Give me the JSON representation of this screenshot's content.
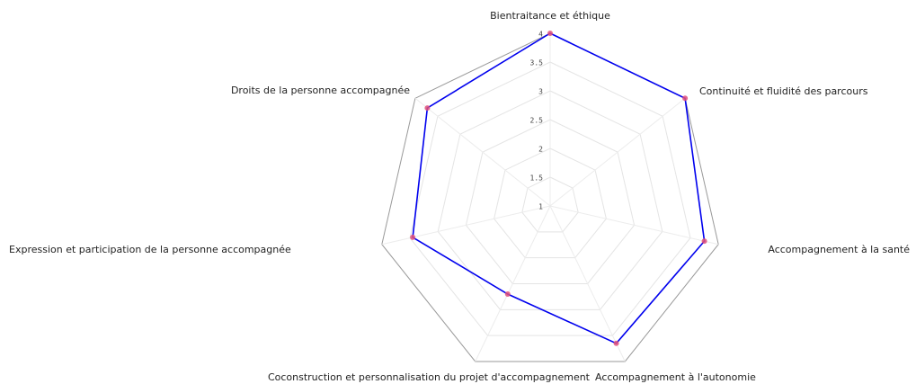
{
  "chart_data": {
    "type": "radar",
    "categories": [
      "Bientraitance et éthique",
      "Continuité et fluidité des parcours",
      "Accompagnement à la santé",
      "Accompagnement à l'autonomie",
      "Coconstruction et personnalisation du projet d'accompagnement",
      "Expression et participation de la personne accompagnée",
      "Droits de la personne accompagnée"
    ],
    "series": [
      {
        "color": "#0000ee",
        "marker_color": "#e0507a",
        "values": [
          4,
          4,
          3.75,
          3.65,
          2.7,
          3.45,
          3.73
        ]
      }
    ],
    "rlim": [
      1,
      4
    ],
    "rticks": [
      1,
      1.5,
      2,
      2.5,
      3,
      3.5,
      4
    ],
    "grid": true
  }
}
